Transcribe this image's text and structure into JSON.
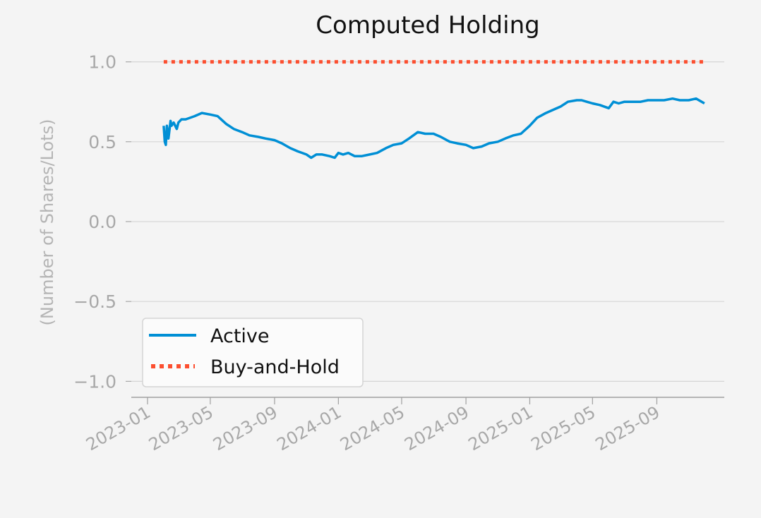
{
  "chart_data": {
    "type": "line",
    "title": "Computed Holding",
    "xlabel": "",
    "ylabel": "(Number of Shares/Lots)",
    "x_axis_type": "date",
    "xlim": [
      "2022-12-01",
      "2026-01-08"
    ],
    "ylim": [
      -1.1,
      1.1
    ],
    "grid": "horizontal",
    "legend_position": "lower-left",
    "x_ticks": [
      "2023-01",
      "2023-05",
      "2023-09",
      "2024-01",
      "2024-05",
      "2024-09",
      "2025-01",
      "2025-05",
      "2025-09"
    ],
    "y_ticks": [
      {
        "value": 1.0,
        "label": "1.0"
      },
      {
        "value": 0.5,
        "label": "0.5"
      },
      {
        "value": 0.0,
        "label": "0.0"
      },
      {
        "value": -0.5,
        "label": "−0.5"
      },
      {
        "value": -1.0,
        "label": "−1.0"
      }
    ],
    "series": [
      {
        "name": "Active",
        "color": "#008fd5",
        "style": "solid",
        "x": [
          "2023-02-01",
          "2023-02-03",
          "2023-02-05",
          "2023-02-07",
          "2023-02-10",
          "2023-02-14",
          "2023-02-16",
          "2023-02-20",
          "2023-02-26",
          "2023-03-01",
          "2023-03-07",
          "2023-03-15",
          "2023-04-01",
          "2023-04-15",
          "2023-05-01",
          "2023-05-15",
          "2023-06-01",
          "2023-06-15",
          "2023-07-01",
          "2023-07-15",
          "2023-08-01",
          "2023-08-15",
          "2023-09-01",
          "2023-09-15",
          "2023-10-01",
          "2023-10-15",
          "2023-11-01",
          "2023-11-10",
          "2023-11-20",
          "2023-12-01",
          "2023-12-15",
          "2023-12-25",
          "2024-01-01",
          "2024-01-10",
          "2024-01-20",
          "2024-02-01",
          "2024-02-15",
          "2024-03-01",
          "2024-03-15",
          "2024-04-01",
          "2024-04-15",
          "2024-05-01",
          "2024-05-15",
          "2024-06-01",
          "2024-06-15",
          "2024-07-01",
          "2024-07-15",
          "2024-08-01",
          "2024-08-15",
          "2024-09-01",
          "2024-09-15",
          "2024-10-01",
          "2024-10-15",
          "2024-11-01",
          "2024-11-15",
          "2024-12-01",
          "2024-12-15",
          "2025-01-01",
          "2025-01-15",
          "2025-02-01",
          "2025-02-15",
          "2025-03-01",
          "2025-03-15",
          "2025-04-01",
          "2025-04-10",
          "2025-04-20",
          "2025-05-01",
          "2025-05-15",
          "2025-06-01",
          "2025-06-10",
          "2025-06-20",
          "2025-07-01",
          "2025-07-15",
          "2025-08-01",
          "2025-08-15",
          "2025-09-01",
          "2025-09-15",
          "2025-10-01",
          "2025-10-15",
          "2025-11-01",
          "2025-11-15",
          "2025-12-01"
        ],
        "values": [
          0.6,
          0.5,
          0.48,
          0.6,
          0.52,
          0.63,
          0.6,
          0.62,
          0.58,
          0.62,
          0.64,
          0.64,
          0.66,
          0.68,
          0.67,
          0.66,
          0.61,
          0.58,
          0.56,
          0.54,
          0.53,
          0.52,
          0.51,
          0.49,
          0.46,
          0.44,
          0.42,
          0.4,
          0.42,
          0.42,
          0.41,
          0.4,
          0.43,
          0.42,
          0.43,
          0.41,
          0.41,
          0.42,
          0.43,
          0.46,
          0.48,
          0.49,
          0.52,
          0.56,
          0.55,
          0.55,
          0.53,
          0.5,
          0.49,
          0.48,
          0.46,
          0.47,
          0.49,
          0.5,
          0.52,
          0.54,
          0.55,
          0.6,
          0.65,
          0.68,
          0.7,
          0.72,
          0.75,
          0.76,
          0.76,
          0.75,
          0.74,
          0.73,
          0.71,
          0.75,
          0.74,
          0.75,
          0.75,
          0.75,
          0.76,
          0.76,
          0.76,
          0.77,
          0.76,
          0.76,
          0.77,
          0.74
        ]
      },
      {
        "name": "Buy-and-Hold",
        "color": "#fc4f30",
        "style": "dotted",
        "x": [
          "2023-02-01",
          "2025-12-01"
        ],
        "values": [
          1.0,
          1.0
        ]
      }
    ]
  }
}
